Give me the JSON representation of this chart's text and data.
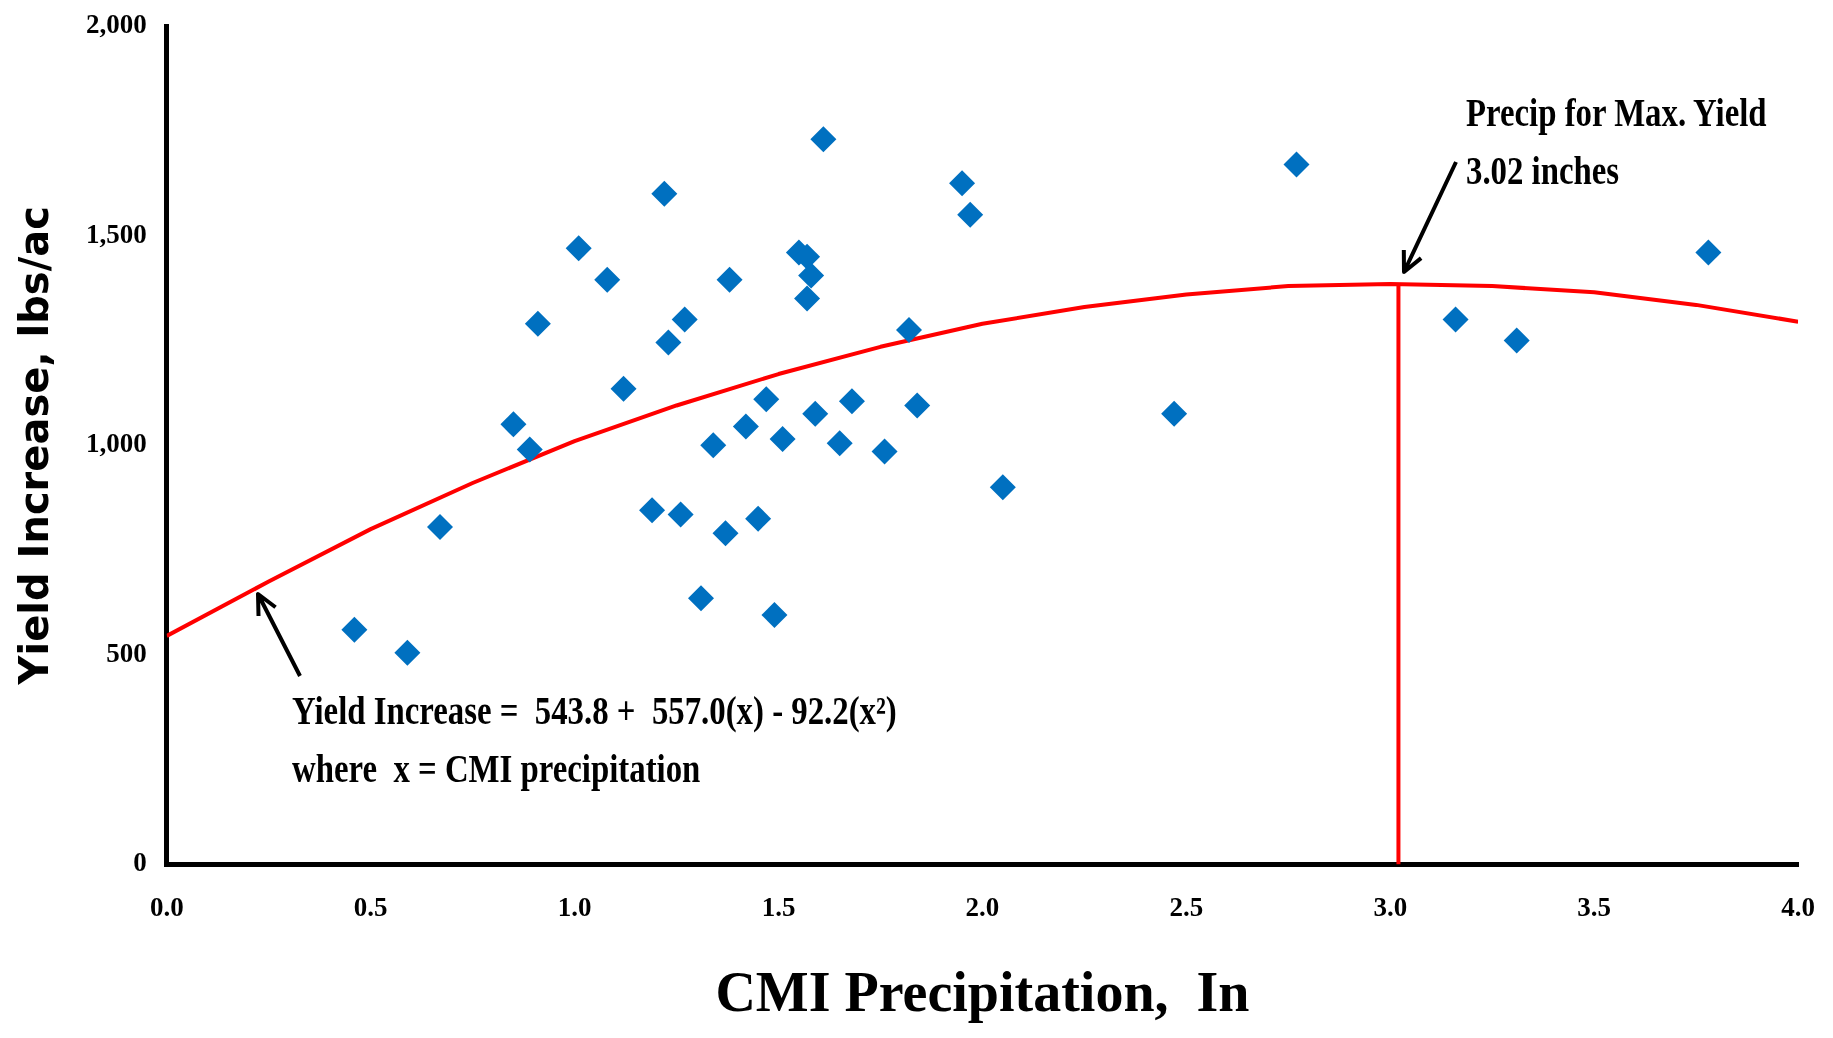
{
  "chart_data": {
    "type": "scatter",
    "xlabel": "CMI Precipitation,  In",
    "ylabel": "Yield Increase, lbs/ac",
    "series": [
      {
        "color": "#0070c0",
        "marker": "diamond",
        "x": [
          0.46,
          0.59,
          0.67,
          0.85,
          0.89,
          0.91,
          1.01,
          1.08,
          1.12,
          1.19,
          1.22,
          1.23,
          1.26,
          1.27,
          1.31,
          1.34,
          1.37,
          1.38,
          1.42,
          1.45,
          1.47,
          1.49,
          1.51,
          1.55,
          1.57,
          1.58,
          1.57,
          1.59,
          1.61,
          1.65,
          1.68,
          1.76,
          1.82,
          1.84,
          1.95,
          1.97,
          2.05,
          2.47,
          2.77,
          3.16,
          3.31,
          3.78
        ],
        "values": [
          560,
          505,
          805,
          1050,
          990,
          1290,
          1470,
          1395,
          1135,
          845,
          1600,
          1245,
          835,
          1300,
          635,
          1000,
          790,
          1395,
          1045,
          825,
          1110,
          595,
          1015,
          1460,
          1450,
          1405,
          1350,
          1075,
          1730,
          1005,
          1105,
          985,
          1275,
          1095,
          1625,
          1550,
          900,
          1075,
          1670,
          1300,
          1250,
          1460
        ]
      },
      {
        "type": "line",
        "color": "#ff0000",
        "marker": "none",
        "x": [
          0,
          0.25,
          0.5,
          0.75,
          1,
          1.25,
          1.5,
          1.75,
          2,
          2.25,
          2.5,
          2.75,
          3,
          3.25,
          3.5,
          3.75,
          4
        ],
        "values": [
          545,
          675,
          800,
          910,
          1010,
          1095,
          1170,
          1235,
          1290,
          1330,
          1360,
          1380,
          1385,
          1380,
          1365,
          1335,
          1295
        ]
      },
      {
        "type": "line",
        "color": "#ff0000",
        "marker": "none",
        "x": [
          3.02,
          3.02
        ],
        "values": [
          0,
          1385
        ]
      }
    ],
    "annotations": [
      {
        "text": "Yield Increase =  543.8 +  557.0(x) - 92.2(x²)\nwhere  x = CMI precipitation",
        "x": 0.22,
        "y": 665
      },
      {
        "text": "Precip for Max. Yield\n3.02 inches",
        "x": 3.02,
        "y": 1385
      }
    ],
    "xlim": [
      0,
      4
    ],
    "xticks": [
      {
        "value": 0,
        "label": "0.0"
      },
      {
        "value": 0.5,
        "label": "0.5"
      },
      {
        "value": 1,
        "label": "1.0"
      },
      {
        "value": 1.5,
        "label": "1.5"
      },
      {
        "value": 2,
        "label": "2.0"
      },
      {
        "value": 2.5,
        "label": "2.5"
      },
      {
        "value": 3,
        "label": "3.0"
      },
      {
        "value": 3.5,
        "label": "3.5"
      },
      {
        "value": 4,
        "label": "4.0"
      }
    ],
    "ylim": [
      0,
      2000
    ],
    "yticks": [
      0,
      500,
      {
        "value": 1000,
        "label": "1,000"
      },
      {
        "value": 1500,
        "label": "1,500"
      },
      {
        "value": 2000,
        "label": "2,000"
      }
    ],
    "grid": false,
    "legend": false
  }
}
